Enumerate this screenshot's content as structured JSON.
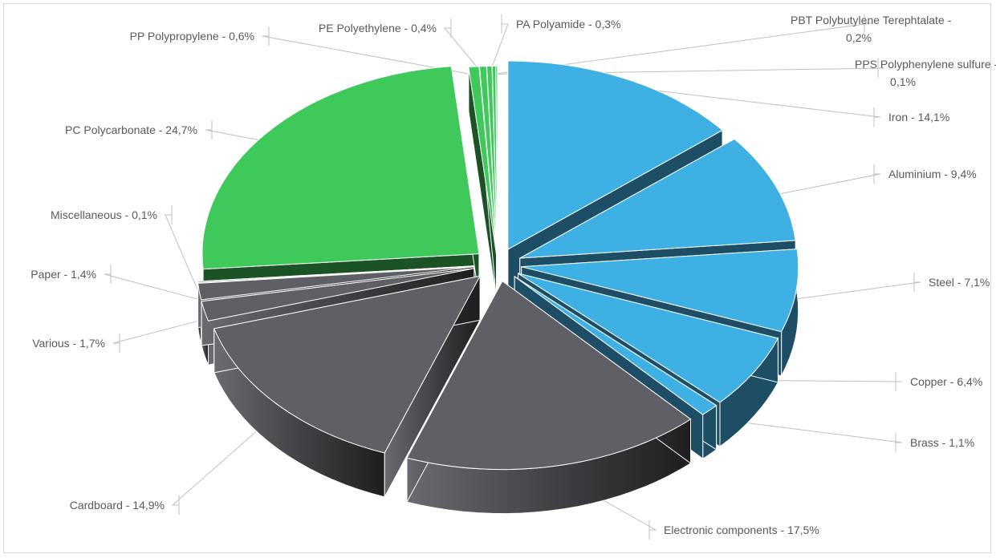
{
  "chart_data": {
    "type": "pie",
    "title": "",
    "labels": [
      "Iron - 14,1%",
      "Aluminium - 9,4%",
      "Steel - 7,1%",
      "Copper - 6,4%",
      "Brass - 1,1%",
      "Electronic components - 17,5%",
      "Cardboard - 14,9%",
      "Various - 1,7%",
      "Paper - 1,4%",
      "Miscellaneous - 0,1%",
      "PC Polycarbonate - 24,7%",
      "PP Polypropylene - 0,6%",
      "PE Polyethylene - 0,4%",
      "PA Polyamide - 0,3%",
      "PBT Polybutylene Terephtalate - 0,2%",
      "PPS Polyphenylene sulfure - 0,1%"
    ],
    "values": [
      14.1,
      9.4,
      7.1,
      6.4,
      1.1,
      17.5,
      14.9,
      1.7,
      1.4,
      0.1,
      24.7,
      0.6,
      0.4,
      0.3,
      0.2,
      0.1
    ],
    "colors": {
      "metals": "#3eb0e3",
      "dark_grey": "#5f6066",
      "plastics": "#3ec95a"
    },
    "exploded": true,
    "three_d": true
  }
}
